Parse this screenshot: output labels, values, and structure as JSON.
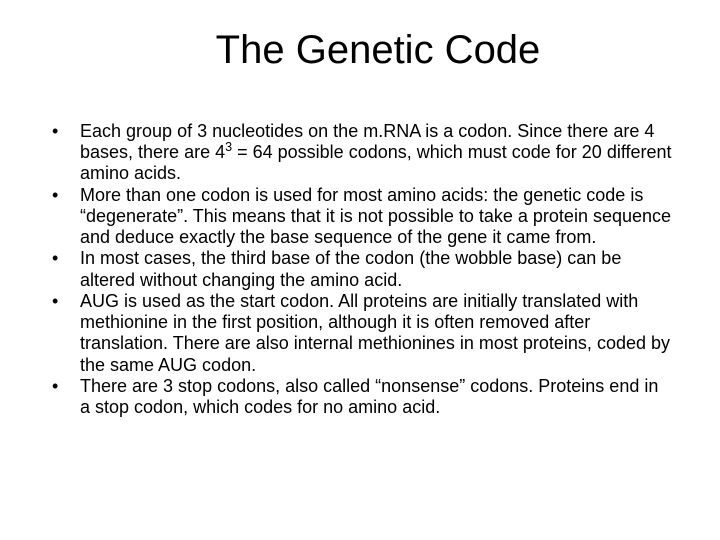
{
  "slide": {
    "title": "The Genetic Code",
    "title_fontsize": 40,
    "body_fontsize": 18,
    "background_color": "#ffffff",
    "text_color": "#000000",
    "bullets": [
      {
        "pre": "Each group of 3 nucleotides on the m.RNA is a codon.  Since there are 4 bases, there are 4",
        "sup": "3",
        "post": " = 64 possible codons, which must code for 20 different amino acids."
      },
      {
        "pre": "More than one codon is used for most amino acids: the genetic code is “degenerate”.  This means that it is not possible to take a protein sequence and deduce exactly the base sequence of the gene it came from.",
        "sup": "",
        "post": ""
      },
      {
        "pre": "In most cases, the third base of the codon (the wobble base) can be altered without changing the amino acid.",
        "sup": "",
        "post": ""
      },
      {
        "pre": "AUG is used as the start codon.  All proteins are initially translated with methionine in the first position, although it is often removed after translation.  There are also internal methionines in most proteins, coded by the same AUG codon.",
        "sup": "",
        "post": ""
      },
      {
        "pre": "There are 3 stop codons, also called “nonsense” codons.  Proteins end in a stop codon, which codes for no amino acid.",
        "sup": "",
        "post": ""
      }
    ]
  }
}
